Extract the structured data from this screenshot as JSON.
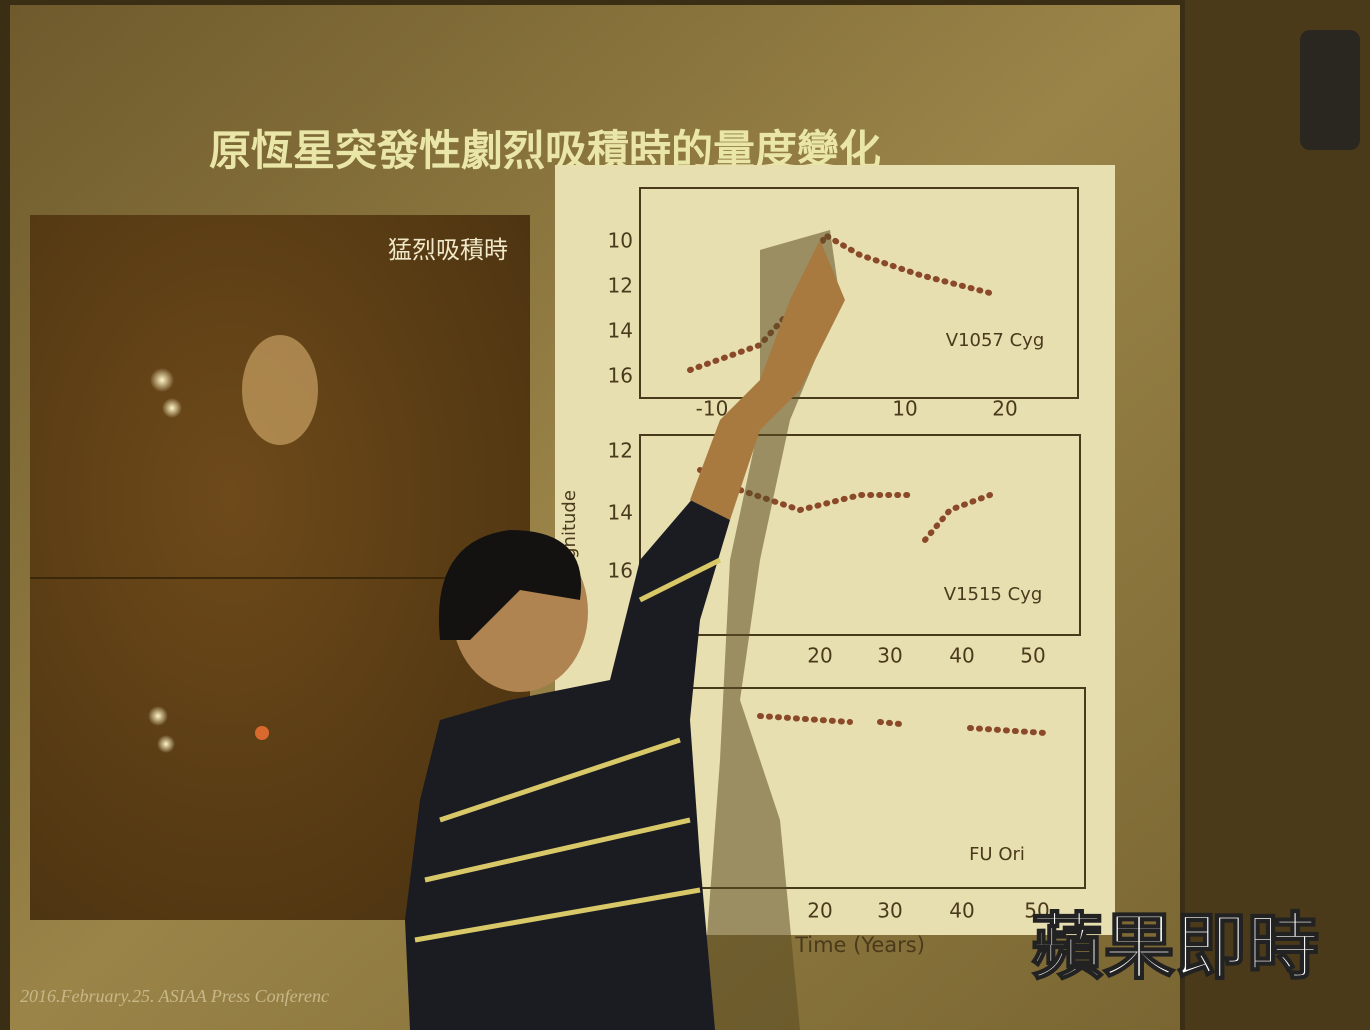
{
  "slide": {
    "title": "原恆星突發性劇烈吸積時的量度變化",
    "left_label": "猛烈吸積時",
    "y_axis_label": "agnitude",
    "x_axis_label": "Time (Years)",
    "plots": [
      {
        "label": "V1057 Cyg",
        "yticks": [
          "10",
          "12",
          "14",
          "16"
        ],
        "xticks": [
          "-10",
          "10",
          "20"
        ]
      },
      {
        "label": "V1515 Cyg",
        "yticks": [
          "12",
          "14",
          "16"
        ],
        "xticks": [
          "20",
          "30",
          "40",
          "50"
        ]
      },
      {
        "label": "FU Ori",
        "yticks": [],
        "xticks": [
          "20",
          "30",
          "40",
          "50"
        ]
      }
    ]
  },
  "footer": "2016.February.25. ASIAA Press Conferenc",
  "watermark": "蘋果即時"
}
